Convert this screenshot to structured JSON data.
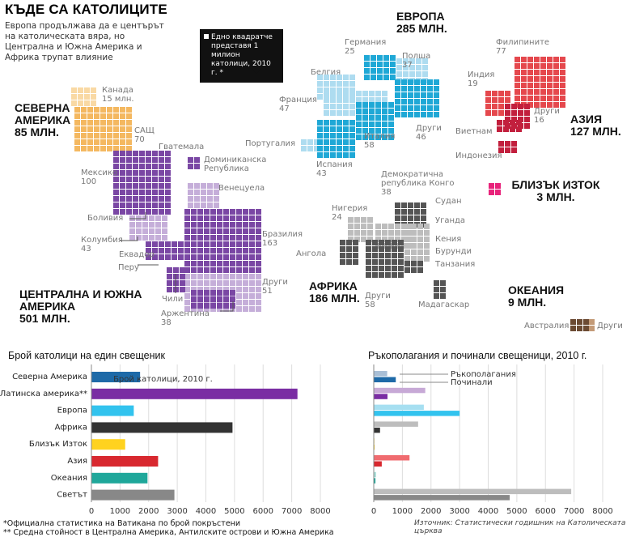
{
  "title": "КЪДЕ СА КАТОЛИЦИТЕ",
  "subtitle": "Европа продължава да е центърът на католическата вяра, но Централна и Южна Америка и Африка трупат влияние",
  "legend_note": "Едно квадратче представя 1 милион католици, 2010 г. *",
  "regions": {
    "north_america": {
      "name": "СЕВЕРНА АМЕРИКА",
      "total": "85 МЛН.",
      "color": "#f4b860",
      "light": "#f9d9a4"
    },
    "latin_america": {
      "name": "ЦЕНТРАЛНА И ЮЖНА АМЕРИКА",
      "total": "501 МЛН.",
      "color": "#7a47a4",
      "light": "#c5aed9"
    },
    "europe": {
      "name": "ЕВРОПА",
      "total": "285 МЛН.",
      "color": "#1fa8d6",
      "light": "#aedcf0"
    },
    "asia": {
      "name": "АЗИЯ",
      "total": "127 МЛН.",
      "color": "#e5484d",
      "light": "#c21f3d"
    },
    "middle_east": {
      "name": "БЛИЗЪК ИЗТОК",
      "total": "3 МЛН.",
      "color": "#e8237b"
    },
    "africa": {
      "name": "АФРИКА",
      "total": "186 МЛН.",
      "color": "#555555",
      "light": "#bdbdbd"
    },
    "oceania": {
      "name": "ОКЕАНИЯ",
      "total": "9 МЛН.",
      "color": "#6b4a33",
      "light": "#c39a77"
    }
  },
  "country_labels": {
    "na1": "Канада",
    "na1v": "15 млн.",
    "na2": "САЩ",
    "na2v": "70",
    "la1": "Гватемала",
    "la2": "Доминиканска",
    "la2b": "Република",
    "la3": "Мексико",
    "la3v": "100",
    "la4": "Венецуела",
    "la5": "Боливия",
    "la6": "Колумбия",
    "la6v": "43",
    "la7": "Еквадор",
    "la8": "Перу",
    "la9": "Чили",
    "la10": "Аржентина",
    "la10v": "38",
    "la11": "Бразилия",
    "la11v": "163",
    "la12": "Други",
    "la12v": "51",
    "eu1": "Германия",
    "eu1v": "25",
    "eu2": "Полша",
    "eu2v": "37",
    "eu3": "Белгия",
    "eu4": "Франция",
    "eu4v": "47",
    "eu5": "Португалия",
    "eu6": "Италия",
    "eu6v": "58",
    "eu7": "Други",
    "eu7v": "46",
    "eu8": "Испания",
    "eu8v": "43",
    "as1": "Филипините",
    "as1v": "77",
    "as2": "Индия",
    "as2v": "19",
    "as3": "Други",
    "as3v": "16",
    "as4": "Виетнам",
    "as5": "Индонезия",
    "af1": "Демократична",
    "af1b": "република Конго",
    "af1v": "38",
    "af2": "Нигерия",
    "af2v": "24",
    "af3": "Судан",
    "af4": "Уганда",
    "af5": "Кения",
    "af6": "Бурунди",
    "af7": "Танзания",
    "af8": "Ангола",
    "af9": "Други",
    "af9v": "58",
    "af10": "Мадагаскар",
    "oc1": "Австралия",
    "oc2": "Други"
  },
  "chart1_title": "Брой католици на един свещеник",
  "chart2_title": "Ръкополагания и починали свещеници, 2010 г.",
  "footnotes": [
    "*Официална статистика на Ватикана по брой покръстени",
    "** Средна стойност в Централна Америка, Антилските острови и Южна Америка"
  ],
  "source": "Източник: Статистически годишник на Католическата църква",
  "chart_data": [
    {
      "type": "bar",
      "orientation": "horizontal",
      "title": "Брой католици на един свещеник",
      "annotation": "Брой католици, 2010 г.",
      "categories": [
        "Северна Америка",
        "Латинска америка**",
        "Европа",
        "Африка",
        "Близък Изток",
        "Азия",
        "Океания",
        "Светът"
      ],
      "values": [
        1700,
        7200,
        1480,
        4930,
        1180,
        2330,
        1960,
        2900
      ],
      "colors": [
        "#1e6aa8",
        "#7a2da3",
        "#32c3ee",
        "#333333",
        "#ffd21f",
        "#d8282f",
        "#1fa79a",
        "#888888"
      ],
      "xlim": [
        0,
        8000
      ],
      "xticks": [
        0,
        1000,
        2000,
        3000,
        4000,
        5000,
        6000,
        7000,
        8000
      ],
      "grid": true
    },
    {
      "type": "bar",
      "orientation": "horizontal",
      "title": "Ръкополагания и починали свещеници, 2010 г.",
      "categories": [
        "Северна Америка",
        "Латинска америка",
        "Европа",
        "Африка",
        "Близък Изток",
        "Азия",
        "Океания",
        "Светът"
      ],
      "series": [
        {
          "name": "Ръкополагания",
          "values": [
            470,
            1800,
            1750,
            1550,
            30,
            1250,
            80,
            6900
          ]
        },
        {
          "name": "Починали",
          "values": [
            770,
            480,
            3000,
            220,
            25,
            280,
            60,
            4750
          ]
        }
      ],
      "colors_light": [
        "#a9bfd6",
        "#c7a9d6",
        "#a6dff1",
        "#bdbdbd",
        "#ffeaa0",
        "#f06b6f",
        "#a6ddd6",
        "#bdbdbd"
      ],
      "colors_dark": [
        "#1e6aa8",
        "#7a2da3",
        "#32c3ee",
        "#333333",
        "#ffd21f",
        "#d8282f",
        "#1fa79a",
        "#888888"
      ],
      "xlim": [
        0,
        8000
      ],
      "xticks": [
        0,
        1000,
        2000,
        3000,
        4000,
        5000,
        6000,
        7000,
        8000
      ],
      "grid": true,
      "legend": "top-left"
    }
  ]
}
